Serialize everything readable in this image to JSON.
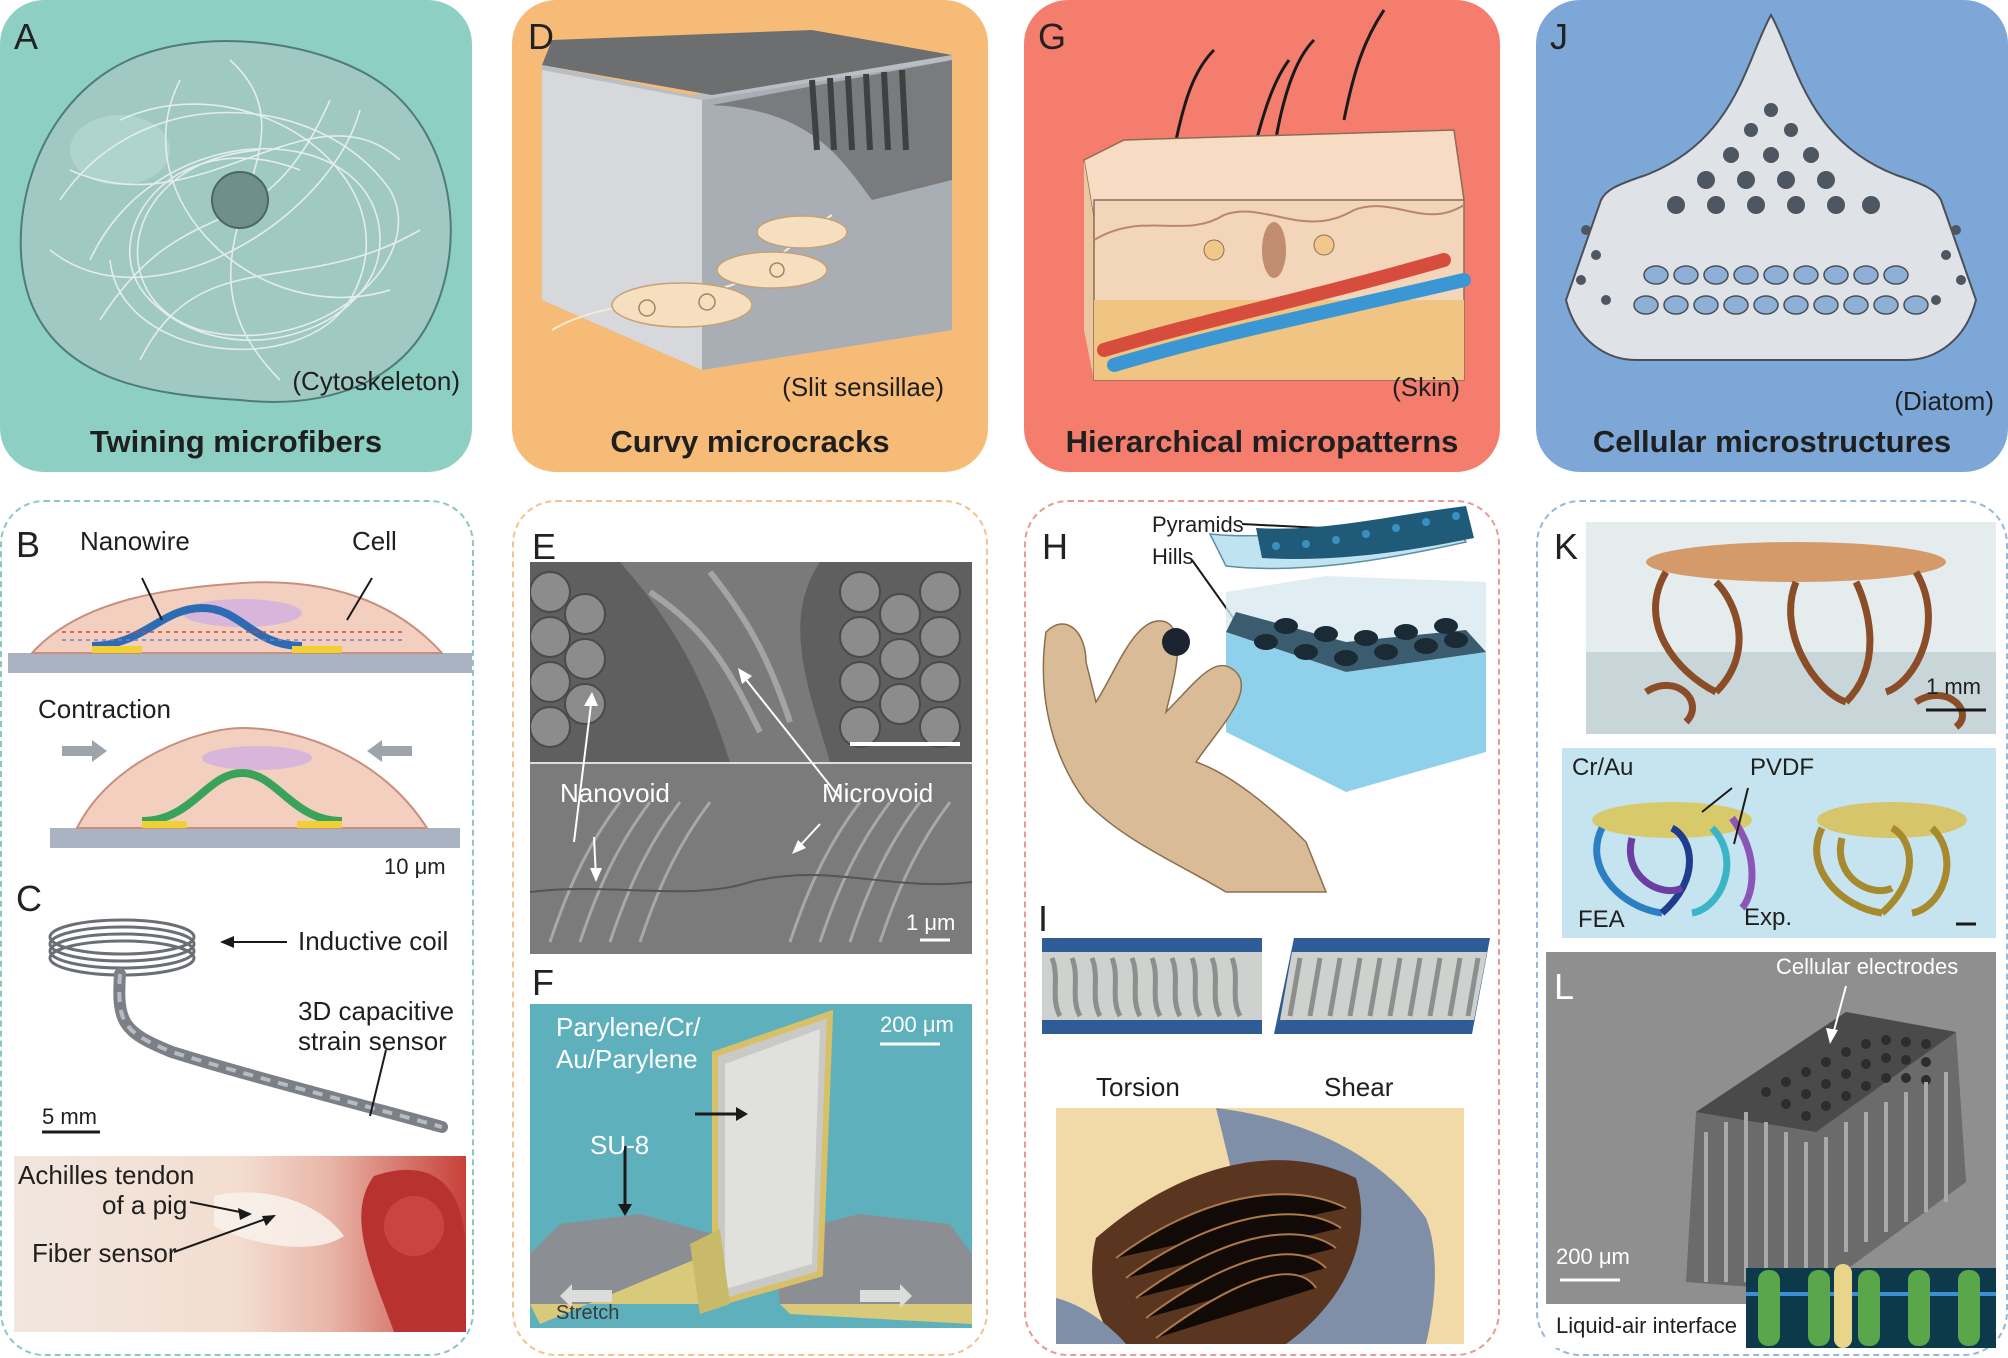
{
  "columns": [
    {
      "card": {
        "letter": "A",
        "caption": "(Cytoskeleton)",
        "title": "Twining microfibers",
        "color": "#8ecfc4"
      },
      "panel": {
        "border_color": "#8ac8c6",
        "b": {
          "letter": "B",
          "nanowire": "Nanowire",
          "cell": "Cell",
          "contraction": "Contraction",
          "scale": "10 μm"
        },
        "c": {
          "letter": "C",
          "coil": "Inductive coil",
          "sensor_line1": "3D capacitive",
          "sensor_line2": "strain sensor",
          "scale": "5 mm",
          "tendon_line1": "Achilles tendon",
          "tendon_line2": "of a pig",
          "fiber": "Fiber sensor"
        }
      }
    },
    {
      "card": {
        "letter": "D",
        "caption": "(Slit sensillae)",
        "title": "Curvy microcracks",
        "color": "#f7bb78"
      },
      "panel": {
        "border_color": "#f2c28f",
        "e": {
          "letter": "E",
          "nanovoid": "Nanovoid",
          "microvoid": "Microvoid",
          "scale": "1 μm"
        },
        "f": {
          "letter": "F",
          "layers_line1": "Parylene/Cr/",
          "layers_line2": "Au/Parylene",
          "su8": "SU-8",
          "scale": "200 μm",
          "stretch": "Stretch"
        }
      }
    },
    {
      "card": {
        "letter": "G",
        "caption": "(Skin)",
        "title": "Hierarchical micropatterns",
        "color": "#f47d6e"
      },
      "panel": {
        "border_color": "#e89a93",
        "h": {
          "letter": "H",
          "pyramids": "Pyramids",
          "hills": "Hills"
        },
        "i": {
          "letter": "I",
          "torsion": "Torsion",
          "shear": "Shear"
        }
      }
    },
    {
      "card": {
        "letter": "J",
        "caption": "(Diatom)",
        "title": "Cellular microstructures",
        "color": "#7da7d6"
      },
      "panel": {
        "border_color": "#96b8d8",
        "k": {
          "letter": "K",
          "scale": "1 mm",
          "crau": "Cr/Au",
          "pvdf": "PVDF",
          "fea": "FEA",
          "exp": "Exp."
        },
        "l": {
          "letter": "L",
          "electrodes": "Cellular electrodes",
          "scale": "200 μm",
          "interface": "Liquid-air interface"
        }
      }
    }
  ]
}
